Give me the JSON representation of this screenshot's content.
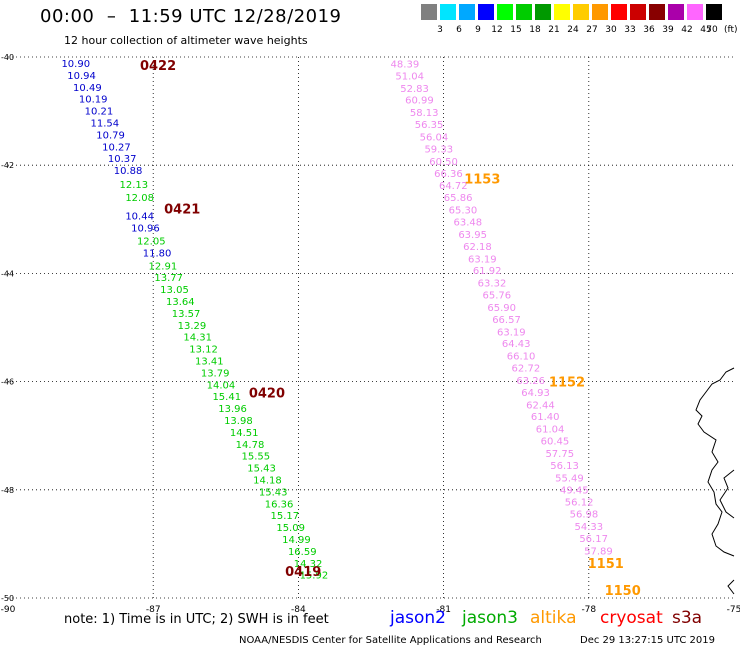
{
  "header": {
    "title": "00:00  –  11:59 UTC 12/28/2019",
    "subtitle": "12 hour collection of altimeter wave heights"
  },
  "legend": {
    "labels": [
      "3",
      "6",
      "9",
      "12",
      "15",
      "18",
      "21",
      "24",
      "27",
      "30",
      "33",
      "36",
      "39",
      "42",
      "45",
      "70"
    ],
    "unit": "(ft)",
    "colors": [
      "#808080",
      "#00e5ff",
      "#00a8ff",
      "#0000ff",
      "#00ff00",
      "#00cc00",
      "#009900",
      "#ffff00",
      "#ffcc00",
      "#ff9900",
      "#ff0000",
      "#cc0000",
      "#880000",
      "#aa00aa",
      "#ff66ff",
      "#000000"
    ]
  },
  "chart_data": {
    "type": "scatter",
    "x_axis": {
      "range": [
        -90,
        -75
      ],
      "ticks": [
        "-90",
        "-87",
        "-84",
        "-81",
        "-78",
        "-75"
      ]
    },
    "y_axis": {
      "range": [
        -50,
        -40
      ],
      "ticks": [
        "-40",
        "-42",
        "-44",
        "-46",
        "-48",
        "-50"
      ]
    },
    "grid": true,
    "series": [
      {
        "name": "jason2",
        "color": "#0000cc",
        "points": [
          {
            "lon": -88.6,
            "lat": -40.11,
            "v": "10.90"
          },
          {
            "lon": -88.48,
            "lat": -40.33,
            "v": "10.94"
          },
          {
            "lon": -88.36,
            "lat": -40.55,
            "v": "10.49"
          },
          {
            "lon": -88.24,
            "lat": -40.77,
            "v": "10.19"
          },
          {
            "lon": -88.12,
            "lat": -40.99,
            "v": "10.21"
          },
          {
            "lon": -88.0,
            "lat": -41.21,
            "v": "11.54"
          },
          {
            "lon": -87.88,
            "lat": -41.43,
            "v": "10.79"
          },
          {
            "lon": -87.76,
            "lat": -41.65,
            "v": "10.27"
          },
          {
            "lon": -87.64,
            "lat": -41.87,
            "v": "10.37"
          },
          {
            "lon": -87.52,
            "lat": -42.09,
            "v": "10.88"
          },
          {
            "lon": -87.28,
            "lat": -42.93,
            "v": "10.44"
          },
          {
            "lon": -87.16,
            "lat": -43.15,
            "v": "10.96"
          },
          {
            "lon": -86.92,
            "lat": -43.61,
            "v": "11.80"
          }
        ]
      },
      {
        "name": "jason3",
        "color": "#00cc00",
        "points": [
          {
            "lon": -87.4,
            "lat": -42.35,
            "v": "12.13"
          },
          {
            "lon": -87.28,
            "lat": -42.59,
            "v": "12.08"
          },
          {
            "lon": -87.04,
            "lat": -43.39,
            "v": "12.05"
          },
          {
            "lon": -86.8,
            "lat": -43.85,
            "v": "12.91"
          },
          {
            "lon": -86.68,
            "lat": -44.07,
            "v": "13.77"
          },
          {
            "lon": -86.56,
            "lat": -44.29,
            "v": "13.05"
          },
          {
            "lon": -86.44,
            "lat": -44.51,
            "v": "13.64"
          },
          {
            "lon": -86.32,
            "lat": -44.73,
            "v": "13.57"
          },
          {
            "lon": -86.2,
            "lat": -44.95,
            "v": "13.29"
          },
          {
            "lon": -86.08,
            "lat": -45.17,
            "v": "14.31"
          },
          {
            "lon": -85.96,
            "lat": -45.39,
            "v": "13.12"
          },
          {
            "lon": -85.84,
            "lat": -45.61,
            "v": "13.41"
          },
          {
            "lon": -85.72,
            "lat": -45.83,
            "v": "13.79"
          },
          {
            "lon": -85.6,
            "lat": -46.05,
            "v": "14.04"
          },
          {
            "lon": -85.48,
            "lat": -46.27,
            "v": "15.41"
          },
          {
            "lon": -85.36,
            "lat": -46.49,
            "v": "13.96"
          },
          {
            "lon": -85.24,
            "lat": -46.71,
            "v": "13.98"
          },
          {
            "lon": -85.12,
            "lat": -46.93,
            "v": "14.51"
          },
          {
            "lon": -85.0,
            "lat": -47.15,
            "v": "14.78"
          },
          {
            "lon": -84.88,
            "lat": -47.37,
            "v": "15.55"
          },
          {
            "lon": -84.76,
            "lat": -47.59,
            "v": "15.43"
          },
          {
            "lon": -84.64,
            "lat": -47.81,
            "v": "14.18"
          },
          {
            "lon": -84.52,
            "lat": -48.03,
            "v": "15.43"
          },
          {
            "lon": -84.4,
            "lat": -48.25,
            "v": "16.36"
          },
          {
            "lon": -84.28,
            "lat": -48.47,
            "v": "15.17"
          },
          {
            "lon": -84.16,
            "lat": -48.69,
            "v": "15.09"
          },
          {
            "lon": -84.04,
            "lat": -48.91,
            "v": "14.99"
          },
          {
            "lon": -83.92,
            "lat": -49.13,
            "v": "16.59"
          },
          {
            "lon": -83.8,
            "lat": -49.35,
            "v": "14.32"
          },
          {
            "lon": -83.68,
            "lat": -49.57,
            "v": "15.92"
          }
        ]
      },
      {
        "name": "s3a",
        "color": "#ee88ee",
        "points": [
          {
            "lon": -81.8,
            "lat": -40.12,
            "v": "48.39"
          },
          {
            "lon": -81.7,
            "lat": -40.34,
            "v": "51.04"
          },
          {
            "lon": -81.6,
            "lat": -40.57,
            "v": "52.83"
          },
          {
            "lon": -81.5,
            "lat": -40.79,
            "v": "60.99"
          },
          {
            "lon": -81.4,
            "lat": -41.02,
            "v": "58.13"
          },
          {
            "lon": -81.3,
            "lat": -41.24,
            "v": "56.35"
          },
          {
            "lon": -81.2,
            "lat": -41.47,
            "v": "56.04"
          },
          {
            "lon": -81.1,
            "lat": -41.69,
            "v": "59.33"
          },
          {
            "lon": -81.0,
            "lat": -41.92,
            "v": "60.50"
          },
          {
            "lon": -80.9,
            "lat": -42.14,
            "v": "66.36"
          },
          {
            "lon": -80.8,
            "lat": -42.37,
            "v": "64.72"
          },
          {
            "lon": -80.7,
            "lat": -42.59,
            "v": "65.86"
          },
          {
            "lon": -80.6,
            "lat": -42.82,
            "v": "65.30"
          },
          {
            "lon": -80.5,
            "lat": -43.04,
            "v": "63.48"
          },
          {
            "lon": -80.4,
            "lat": -43.27,
            "v": "63.95"
          },
          {
            "lon": -80.3,
            "lat": -43.49,
            "v": "62.18"
          },
          {
            "lon": -80.2,
            "lat": -43.72,
            "v": "63.19"
          },
          {
            "lon": -80.1,
            "lat": -43.94,
            "v": "61.92"
          },
          {
            "lon": -80.0,
            "lat": -44.17,
            "v": "63.32"
          },
          {
            "lon": -79.9,
            "lat": -44.39,
            "v": "65.76"
          },
          {
            "lon": -79.8,
            "lat": -44.62,
            "v": "65.90"
          },
          {
            "lon": -79.7,
            "lat": -44.84,
            "v": "66.57"
          },
          {
            "lon": -79.6,
            "lat": -45.07,
            "v": "63.19"
          },
          {
            "lon": -79.5,
            "lat": -45.29,
            "v": "64.43"
          },
          {
            "lon": -79.4,
            "lat": -45.52,
            "v": "66.10"
          },
          {
            "lon": -79.3,
            "lat": -45.74,
            "v": "62.72"
          },
          {
            "lon": -79.2,
            "lat": -45.97,
            "v": "63.26"
          },
          {
            "lon": -79.1,
            "lat": -46.19,
            "v": "64.93"
          },
          {
            "lon": -79.0,
            "lat": -46.42,
            "v": "62.44"
          },
          {
            "lon": -78.9,
            "lat": -46.64,
            "v": "61.40"
          },
          {
            "lon": -78.8,
            "lat": -46.87,
            "v": "61.04"
          },
          {
            "lon": -78.7,
            "lat": -47.09,
            "v": "60.45"
          },
          {
            "lon": -78.6,
            "lat": -47.32,
            "v": "57.75"
          },
          {
            "lon": -78.5,
            "lat": -47.54,
            "v": "56.13"
          },
          {
            "lon": -78.4,
            "lat": -47.77,
            "v": "55.49"
          },
          {
            "lon": -78.3,
            "lat": -47.99,
            "v": "49.45"
          },
          {
            "lon": -78.2,
            "lat": -48.22,
            "v": "56.12"
          },
          {
            "lon": -78.1,
            "lat": -48.44,
            "v": "56.98"
          },
          {
            "lon": -78.0,
            "lat": -48.67,
            "v": "54.33"
          },
          {
            "lon": -77.9,
            "lat": -48.89,
            "v": "56.17"
          },
          {
            "lon": -77.8,
            "lat": -49.12,
            "v": "57.89"
          }
        ]
      }
    ],
    "time_labels": [
      {
        "lon": -86.9,
        "lat": -40.15,
        "text": "0422",
        "color": "#800000"
      },
      {
        "lon": -86.4,
        "lat": -42.8,
        "text": "0421",
        "color": "#800000"
      },
      {
        "lon": -84.65,
        "lat": -46.2,
        "text": "0420",
        "color": "#800000"
      },
      {
        "lon": -83.9,
        "lat": -49.5,
        "text": "0419",
        "color": "#800000"
      },
      {
        "lon": -80.2,
        "lat": -42.25,
        "text": "1153",
        "color": "#ff9900"
      },
      {
        "lon": -78.45,
        "lat": -46.0,
        "text": "1152",
        "color": "#ff9900"
      },
      {
        "lon": -77.65,
        "lat": -49.35,
        "text": "1151",
        "color": "#ff9900"
      },
      {
        "lon": -77.3,
        "lat": -49.85,
        "text": "1150",
        "color": "#ff9900"
      }
    ]
  },
  "footer": {
    "note": "note: 1) Time is in UTC; 2) SWH is in feet",
    "satellites": [
      {
        "name": "jason2",
        "color": "#0000ff"
      },
      {
        "name": "jason3",
        "color": "#00aa00"
      },
      {
        "name": "altika",
        "color": "#ff9900"
      },
      {
        "name": "cryosat",
        "color": "#ff0000"
      },
      {
        "name": "s3a",
        "color": "#800000"
      }
    ],
    "credit": "NOAA/NESDIS Center for Satellite Applications and Research",
    "timestamp": "Dec 29 13:27:15 UTC 2019"
  }
}
